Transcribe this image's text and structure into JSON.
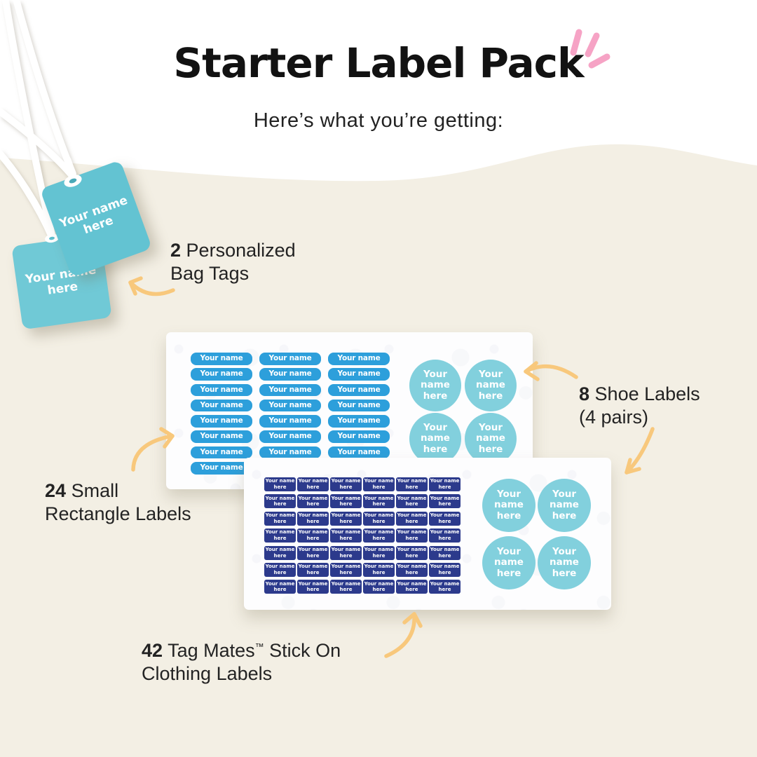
{
  "header": {
    "title": "Starter Label Pack",
    "subtitle": "Here’s what you’re getting:"
  },
  "bag_tags": {
    "count": 2,
    "front": {
      "line1": "Your name",
      "line2": "here"
    },
    "back": {
      "line1": "Your name",
      "line2": "here"
    }
  },
  "sheet1": {
    "rect_labels": {
      "count": 24,
      "rows": 8,
      "cols": 3,
      "text": "Your name here"
    },
    "circles": {
      "count": 4,
      "line1": "Your name",
      "line2": "here"
    }
  },
  "sheet2": {
    "tag_mates": {
      "count": 42,
      "rows": 7,
      "cols": 6,
      "line1": "Your name",
      "line2": "here"
    },
    "circles": {
      "count": 4,
      "line1": "Your name",
      "line2": "here"
    }
  },
  "annotations": {
    "bag_tags": {
      "number": "2",
      "rest": "Personalized",
      "line2": "Bag Tags"
    },
    "shoe_labels": {
      "number": "8",
      "rest": "Shoe Labels",
      "line2": "(4 pairs)"
    },
    "rect_labels": {
      "number": "24",
      "rest": "Small",
      "line2": "Rectangle Labels"
    },
    "tag_mates": {
      "number": "42",
      "rest": "Tag Mates",
      "trademark": "™",
      "rest2": "Stick On",
      "line2": "Clothing Labels"
    }
  },
  "colors": {
    "cream_background": "#f3efe4",
    "tag_teal": "#63c3d2",
    "rect_label_blue": "#2d9fdb",
    "tag_mate_navy": "#2c3a8c",
    "shoe_circle_teal": "#82d0dd",
    "arrow_yellow": "#f8c87c",
    "sparkle_pink": "#f6a3c5",
    "title_black": "#121212"
  }
}
